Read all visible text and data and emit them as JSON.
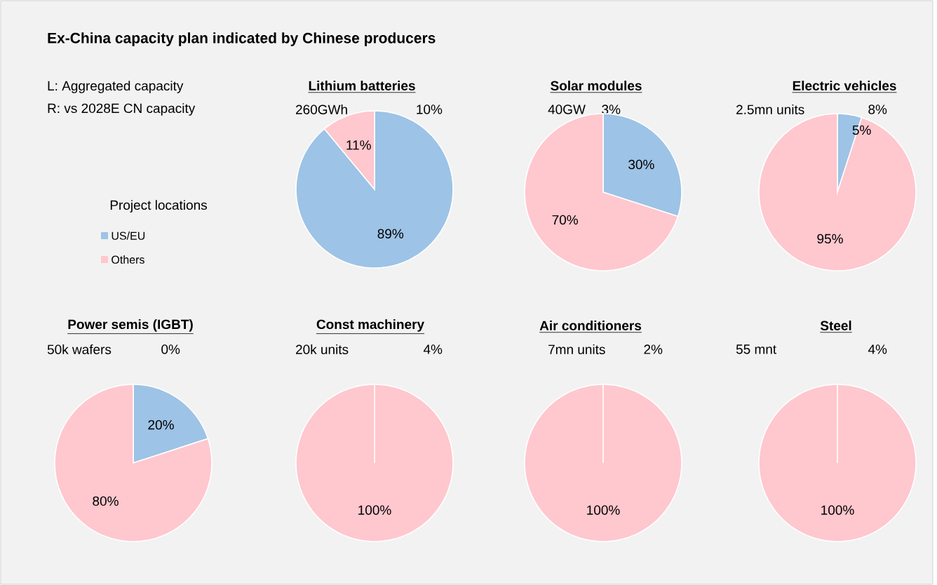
{
  "chart_data": [
    {
      "type": "other",
      "title": "Ex-China capacity plan indicated by Chinese producers",
      "annotations": [
        "L: Aggregated capacity",
        "R: vs 2028E CN capacity"
      ]
    },
    {
      "type": "pie",
      "title": "Lithium batteries",
      "subtitle": "260GWh",
      "annotations": [
        "10%"
      ],
      "categories": [
        "US/EU",
        "Others"
      ],
      "values": [
        89,
        11
      ],
      "colors": [
        "#9dc3e6",
        "#ffc7ce"
      ],
      "value_labels": [
        "89%",
        "11%"
      ],
      "legend": "left",
      "legend_title": "Project locations"
    },
    {
      "type": "pie",
      "title": "Solar modules",
      "subtitle": "40GW",
      "annotations": [
        "3%"
      ],
      "values": [
        30,
        70
      ],
      "colors": [
        "#9dc3e6",
        "#ffc7ce"
      ],
      "value_labels": [
        "30%",
        "70%"
      ]
    },
    {
      "type": "pie",
      "title": "Electric vehicles",
      "subtitle": "2.5mn units",
      "annotations": [
        "8%"
      ],
      "values": [
        5,
        95
      ],
      "colors": [
        "#9dc3e6",
        "#ffc7ce"
      ],
      "value_labels": [
        "5%",
        "95%"
      ]
    },
    {
      "type": "pie",
      "title": "Power semis (IGBT)",
      "subtitle": "50k wafers",
      "annotations": [
        "0%"
      ],
      "values": [
        20,
        80
      ],
      "colors": [
        "#9dc3e6",
        "#ffc7ce"
      ],
      "value_labels": [
        "20%",
        "80%"
      ]
    },
    {
      "type": "pie",
      "title": "Const machinery",
      "subtitle": "20k units",
      "annotations": [
        "4%"
      ],
      "values": [
        0,
        100
      ],
      "colors": [
        "#9dc3e6",
        "#ffc7ce"
      ],
      "value_labels": [
        null,
        "100%"
      ]
    },
    {
      "type": "pie",
      "title": "Air conditioners",
      "subtitle": "7mn units",
      "annotations": [
        "2%"
      ],
      "values": [
        0,
        100
      ],
      "colors": [
        "#9dc3e6",
        "#ffc7ce"
      ],
      "value_labels": [
        null,
        "100%"
      ]
    },
    {
      "type": "pie",
      "title": "Steel",
      "subtitle": "55 mnt",
      "annotations": [
        "4%"
      ],
      "values": [
        0,
        100
      ],
      "colors": [
        "#9dc3e6",
        "#ffc7ce"
      ],
      "value_labels": [
        null,
        "100%"
      ]
    }
  ]
}
